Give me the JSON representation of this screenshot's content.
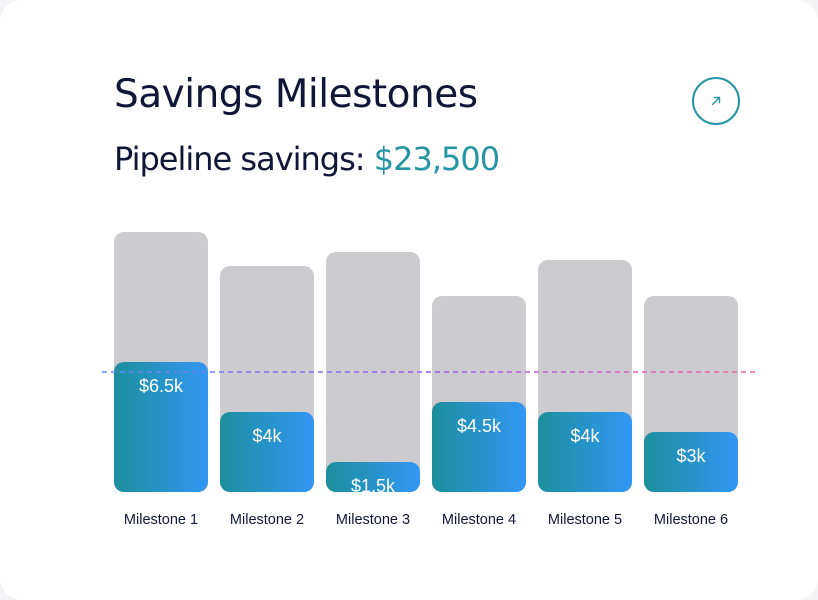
{
  "header": {
    "title": "Savings Milestones",
    "subtitle_label": "Pipeline savings:",
    "subtitle_amount": "$23,500"
  },
  "icons": {
    "open_button": "arrow-up-right-icon"
  },
  "colors": {
    "accent": "#2596a5",
    "bar_gradient_start": "#1c8f9d",
    "bar_gradient_end": "#3297f5",
    "bar_track": "#cccbcf",
    "title": "#101638"
  },
  "chart_data": {
    "type": "bar",
    "categories": [
      "Milestone 1",
      "Milestone 2",
      "Milestone 3",
      "Milestone 4",
      "Milestone 5",
      "Milestone 6"
    ],
    "series": [
      {
        "values": [
          6.5,
          4,
          1.5,
          4.5,
          4,
          3
        ]
      },
      {
        "values": [
          13,
          11.3,
          12,
          9.8,
          11.6,
          9.8
        ]
      }
    ],
    "value_labels": [
      "$6.5k",
      "$4k",
      "$1.5k",
      "$4.5k",
      "$4k",
      "$3k"
    ],
    "reference_line": 6,
    "unit": "$k",
    "ylim": [
      0,
      13
    ],
    "grid": false
  }
}
